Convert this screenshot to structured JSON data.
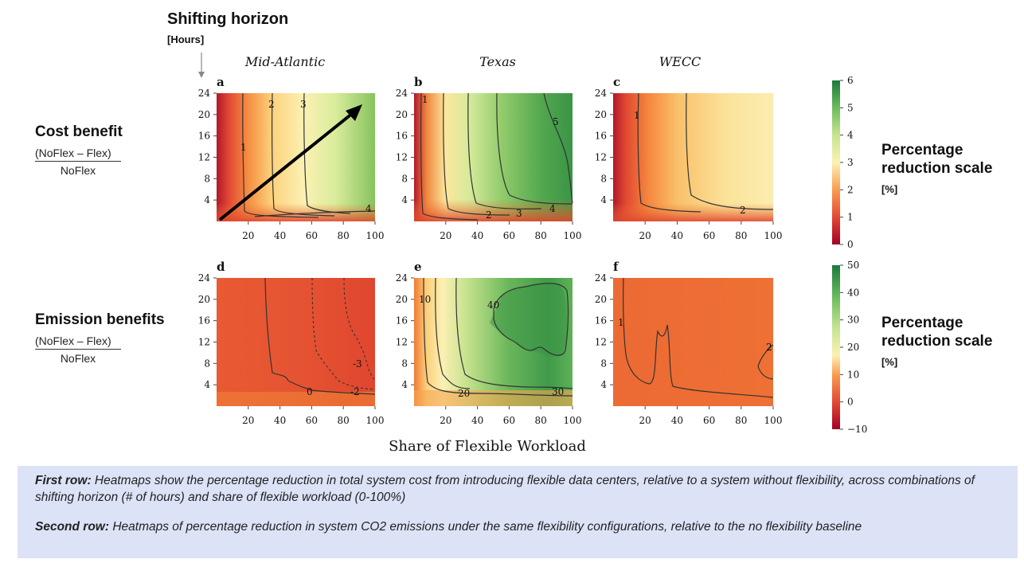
{
  "header": {
    "title": "Shifting horizon",
    "unit": "[Hours]"
  },
  "rows": [
    {
      "label": "Cost benefit",
      "numerator": "(NoFlex – Flex)",
      "denominator": "NoFlex",
      "scale_label_1": "Percentage",
      "scale_label_2": "reduction scale",
      "scale_unit": "[%]"
    },
    {
      "label": "Emission benefits",
      "numerator": "(NoFlex – Flex)",
      "denominator": "NoFlex",
      "scale_label_1": "Percentage",
      "scale_label_2": "reduction scale",
      "scale_unit": "[%]"
    }
  ],
  "xlabel": "Share of Flexible Workload",
  "colors": {
    "red": "#b2182b",
    "orange": "#f07a35",
    "yellow": "#fbf4b6",
    "lightgreen": "#9ccf6a",
    "green": "#1b7a3a"
  },
  "chart_data": [
    {
      "type": "heatmap",
      "panel": "a",
      "title": "Mid-Atlantic",
      "x_ticks": [
        20,
        40,
        60,
        80,
        100
      ],
      "y_ticks": [
        4,
        8,
        12,
        16,
        20,
        24
      ],
      "xlim": [
        0,
        100
      ],
      "ylim": [
        0,
        24
      ],
      "contour_labels": [
        "1",
        "2",
        "3",
        "4"
      ],
      "colorbar": {
        "min": 0,
        "max": 6,
        "ticks": [
          0,
          1,
          2,
          3,
          4,
          5,
          6
        ]
      }
    },
    {
      "type": "heatmap",
      "panel": "b",
      "title": "Texas",
      "x_ticks": [
        20,
        40,
        60,
        80,
        100
      ],
      "y_ticks": [
        4,
        8,
        12,
        16,
        20,
        24
      ],
      "xlim": [
        0,
        100
      ],
      "ylim": [
        0,
        24
      ],
      "contour_labels": [
        "1",
        "2",
        "3",
        "4",
        "5"
      ]
    },
    {
      "type": "heatmap",
      "panel": "c",
      "title": "WECC",
      "x_ticks": [
        20,
        40,
        60,
        80,
        100
      ],
      "y_ticks": [
        4,
        8,
        12,
        16,
        20,
        24
      ],
      "xlim": [
        0,
        100
      ],
      "ylim": [
        0,
        24
      ],
      "contour_labels": [
        "1",
        "2"
      ]
    },
    {
      "type": "heatmap",
      "panel": "d",
      "title": "",
      "x_ticks": [
        20,
        40,
        60,
        80,
        100
      ],
      "y_ticks": [
        4,
        8,
        12,
        16,
        20,
        24
      ],
      "xlim": [
        0,
        100
      ],
      "ylim": [
        0,
        24
      ],
      "contour_labels": [
        "0",
        "-2",
        "-3"
      ],
      "colorbar": {
        "min": -10,
        "max": 50,
        "ticks": [
          -10,
          0,
          10,
          20,
          30,
          40,
          50
        ]
      }
    },
    {
      "type": "heatmap",
      "panel": "e",
      "title": "",
      "x_ticks": [
        20,
        40,
        60,
        80,
        100
      ],
      "y_ticks": [
        4,
        8,
        12,
        16,
        20,
        24
      ],
      "xlim": [
        0,
        100
      ],
      "ylim": [
        0,
        24
      ],
      "contour_labels": [
        "10",
        "20",
        "30",
        "40"
      ]
    },
    {
      "type": "heatmap",
      "panel": "f",
      "title": "",
      "x_ticks": [
        20,
        40,
        60,
        80,
        100
      ],
      "y_ticks": [
        4,
        8,
        12,
        16,
        20,
        24
      ],
      "xlim": [
        0,
        100
      ],
      "ylim": [
        0,
        24
      ],
      "contour_labels": [
        "1",
        "2"
      ]
    }
  ],
  "caption": {
    "row1_lead": "First row:",
    "row1_text": " Heatmaps show the percentage reduction in total system cost from introducing flexible data centers, relative to a system without flexibility, across combinations of shifting horizon (# of hours) and share of flexible workload (0-100%)",
    "row2_lead": "Second row:",
    "row2_text": " Heatmaps of percentage reduction in system CO2 emissions under the same flexibility configurations, relative to the no flexibility baseline"
  }
}
